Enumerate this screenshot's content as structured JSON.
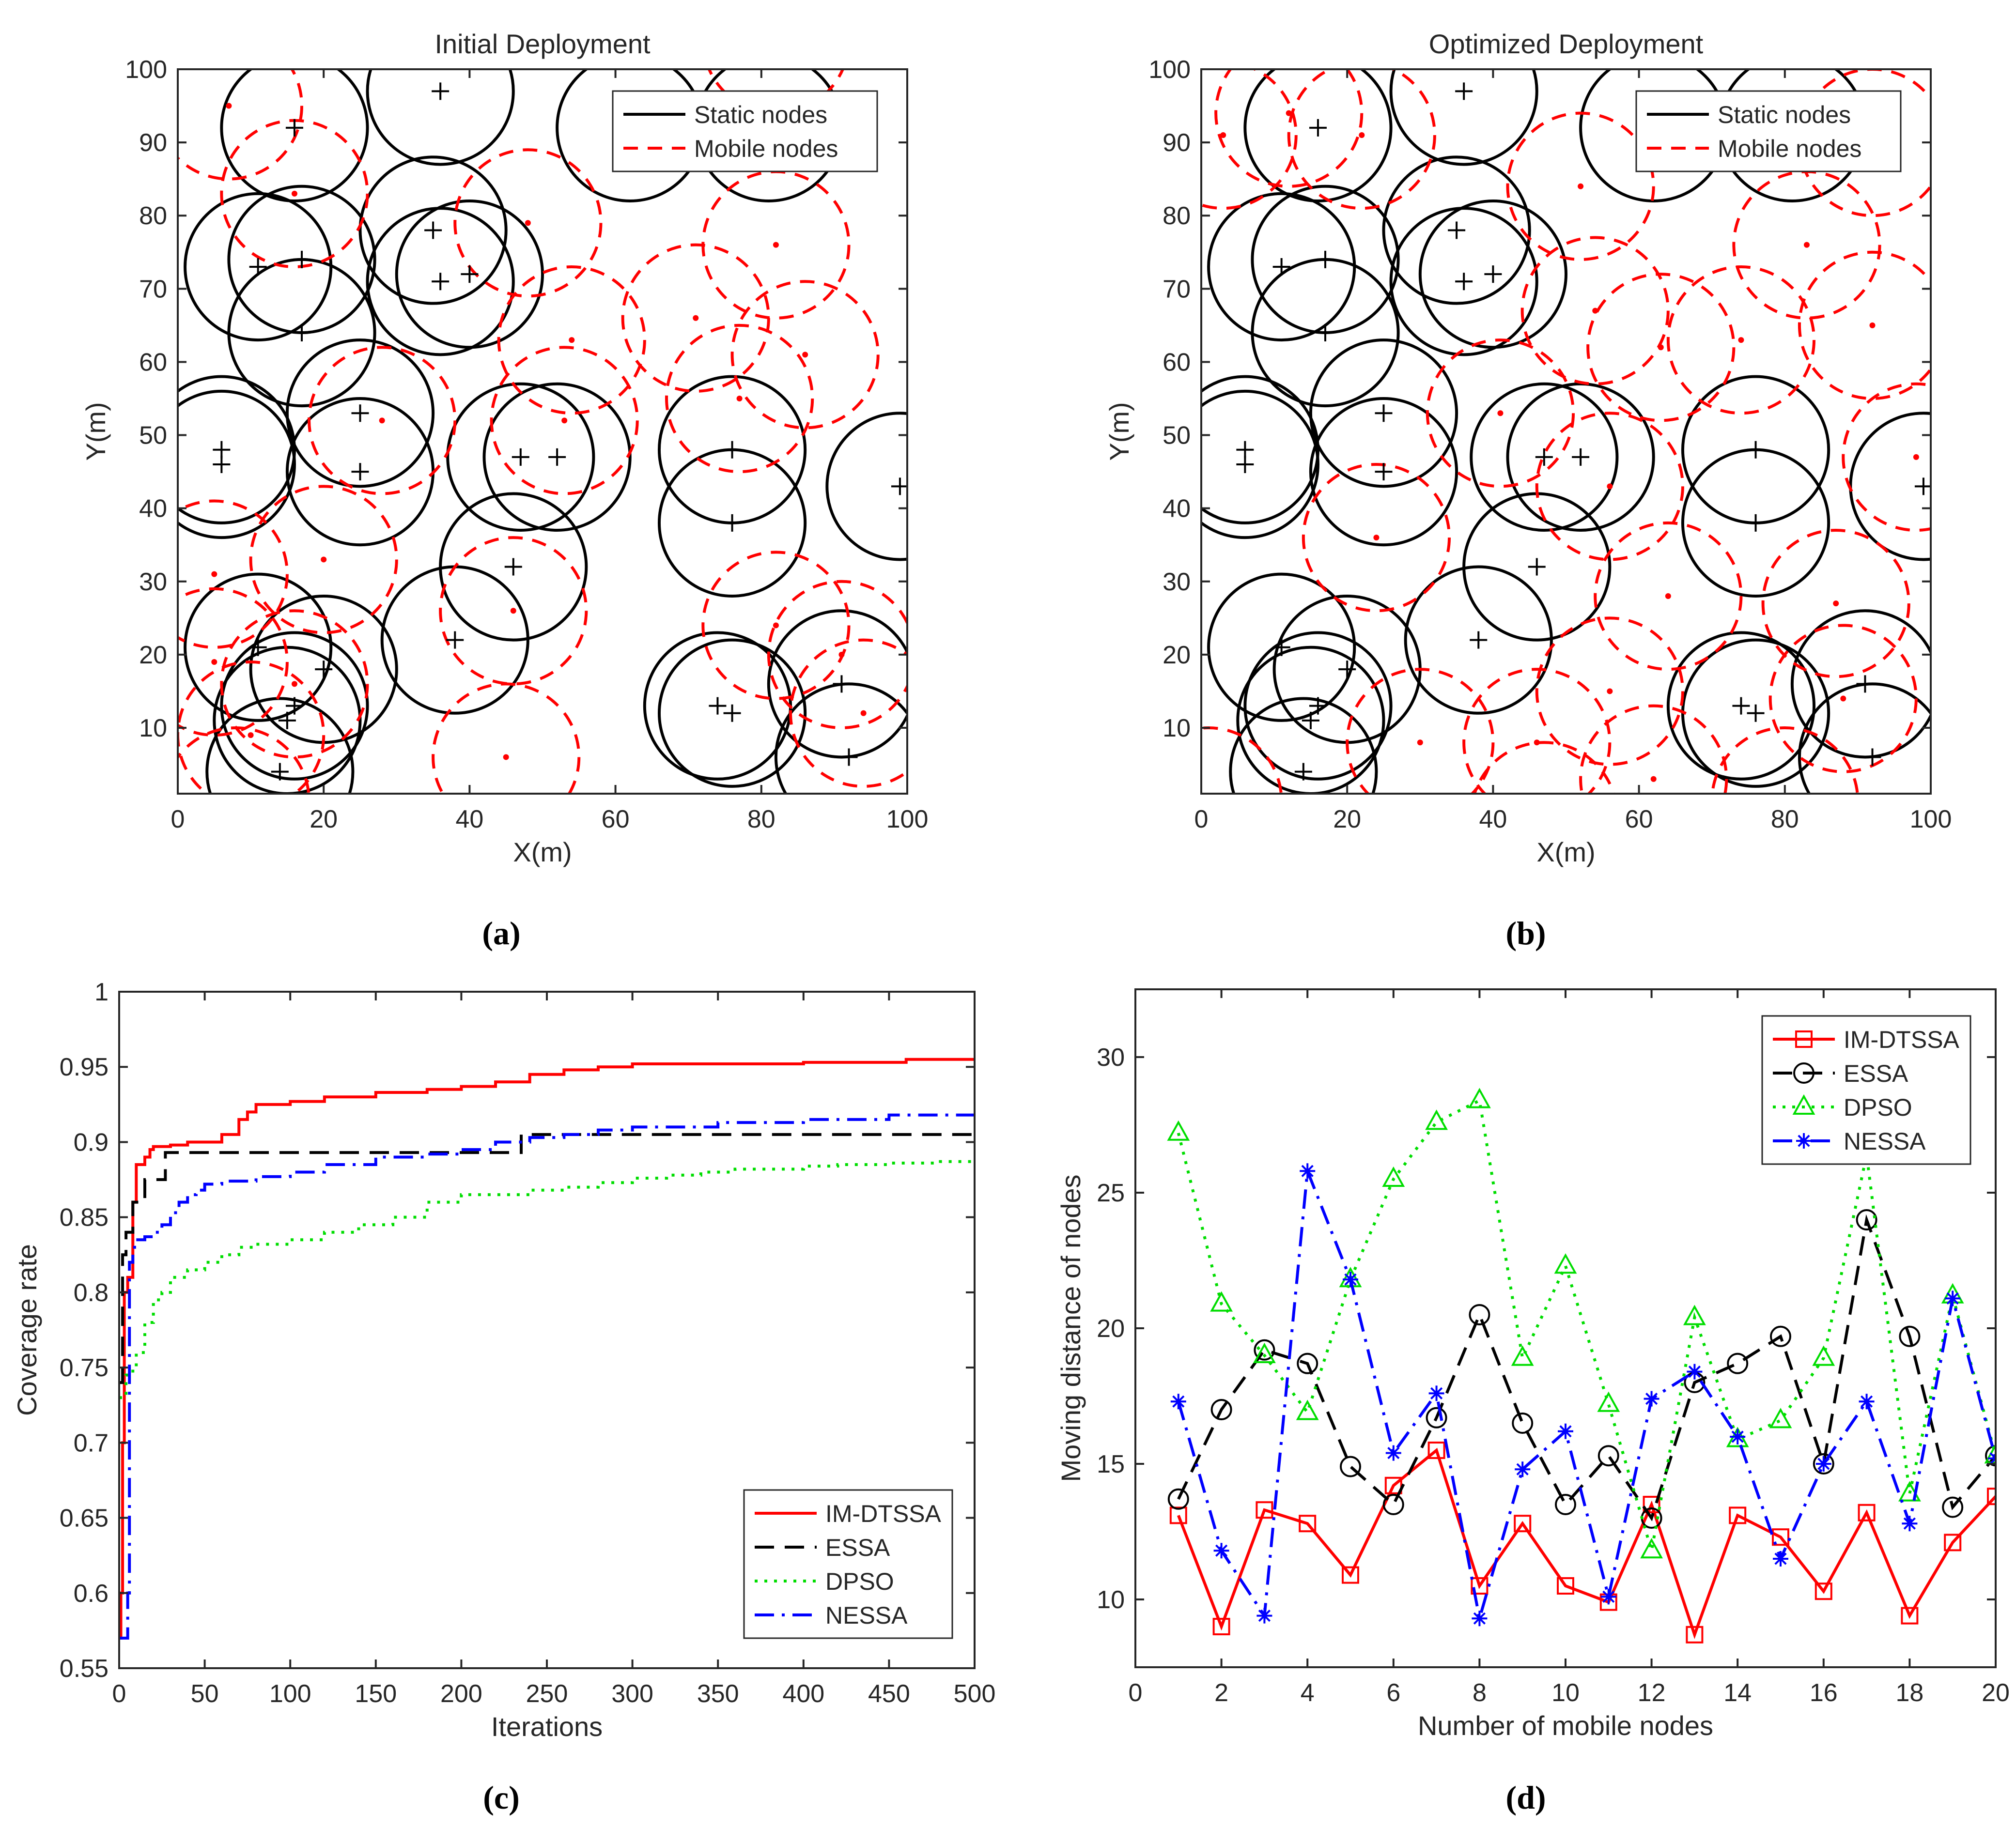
{
  "colors": {
    "static": "#000000",
    "mobile": "#ff0000",
    "essa": "#000000",
    "dpso": "#00dd00",
    "nessa": "#0000ff",
    "imdtssa": "#ff0000"
  },
  "charts": [
    {
      "id": "a",
      "type": "scatter",
      "title": "Initial Deployment",
      "xlabel": "X(m)",
      "ylabel": "Y(m)",
      "xlim": [
        0,
        100
      ],
      "ylim": [
        1,
        100
      ],
      "xticks": [
        0,
        20,
        40,
        60,
        80,
        100
      ],
      "yticks": [
        10,
        20,
        30,
        40,
        50,
        60,
        70,
        80,
        90,
        100
      ],
      "legend": [
        "Static nodes",
        "Mobile nodes"
      ],
      "legend_position": "top-right",
      "caption": "(a)",
      "sensing_radius": 10,
      "static_nodes": [
        [
          36,
          97
        ],
        [
          62,
          92
        ],
        [
          16,
          92
        ],
        [
          81,
          92
        ],
        [
          11,
          73
        ],
        [
          17,
          74
        ],
        [
          17,
          64
        ],
        [
          35,
          78
        ],
        [
          36,
          71
        ],
        [
          40,
          72
        ],
        [
          6,
          48
        ],
        [
          6,
          46
        ],
        [
          25,
          53
        ],
        [
          25,
          45
        ],
        [
          47,
          47
        ],
        [
          52,
          47
        ],
        [
          46,
          32
        ],
        [
          76,
          48
        ],
        [
          76,
          38
        ],
        [
          38,
          22
        ],
        [
          11,
          21
        ],
        [
          20,
          18
        ],
        [
          16,
          13
        ],
        [
          15,
          11
        ],
        [
          14,
          4
        ],
        [
          74,
          13
        ],
        [
          76,
          12
        ],
        [
          91,
          16
        ],
        [
          92,
          6
        ],
        [
          99,
          43
        ]
      ],
      "mobile_nodes": [
        [
          7,
          95
        ],
        [
          16,
          83
        ],
        [
          48,
          79
        ],
        [
          82,
          76
        ],
        [
          71,
          66
        ],
        [
          54,
          63
        ],
        [
          86,
          61
        ],
        [
          77,
          55
        ],
        [
          28,
          52
        ],
        [
          53,
          52
        ],
        [
          20,
          33
        ],
        [
          5,
          31
        ],
        [
          46,
          26
        ],
        [
          82,
          24
        ],
        [
          91,
          20
        ],
        [
          5,
          19
        ],
        [
          10,
          9
        ],
        [
          16,
          16
        ],
        [
          94,
          12
        ],
        [
          45,
          6
        ],
        [
          8,
          0
        ],
        [
          82,
          104
        ]
      ]
    },
    {
      "id": "b",
      "type": "scatter",
      "title": "Optimized Deployment",
      "xlabel": "X(m)",
      "ylabel": "Y(m)",
      "xlim": [
        0,
        100
      ],
      "ylim": [
        1,
        100
      ],
      "xticks": [
        0,
        20,
        40,
        60,
        80,
        100
      ],
      "yticks": [
        10,
        20,
        30,
        40,
        50,
        60,
        70,
        80,
        90,
        100
      ],
      "legend": [
        "Static nodes",
        "Mobile nodes"
      ],
      "legend_position": "top-right",
      "caption": "(b)",
      "sensing_radius": 10,
      "static_nodes": [
        [
          36,
          97
        ],
        [
          62,
          92
        ],
        [
          16,
          92
        ],
        [
          81,
          92
        ],
        [
          11,
          73
        ],
        [
          17,
          74
        ],
        [
          17,
          64
        ],
        [
          35,
          78
        ],
        [
          36,
          71
        ],
        [
          40,
          72
        ],
        [
          6,
          48
        ],
        [
          6,
          46
        ],
        [
          25,
          53
        ],
        [
          25,
          45
        ],
        [
          47,
          47
        ],
        [
          52,
          47
        ],
        [
          46,
          32
        ],
        [
          76,
          48
        ],
        [
          76,
          38
        ],
        [
          38,
          22
        ],
        [
          11,
          21
        ],
        [
          20,
          18
        ],
        [
          16,
          13
        ],
        [
          15,
          11
        ],
        [
          14,
          4
        ],
        [
          74,
          13
        ],
        [
          76,
          12
        ],
        [
          91,
          16
        ],
        [
          92,
          6
        ],
        [
          99,
          43
        ]
      ],
      "mobile_nodes": [
        [
          3,
          91
        ],
        [
          12,
          94
        ],
        [
          22,
          91
        ],
        [
          52,
          84
        ],
        [
          92,
          90
        ],
        [
          83,
          76
        ],
        [
          54,
          67
        ],
        [
          63,
          62
        ],
        [
          92,
          65
        ],
        [
          74,
          63
        ],
        [
          98,
          47
        ],
        [
          41,
          53
        ],
        [
          56,
          43
        ],
        [
          24,
          36
        ],
        [
          87,
          27
        ],
        [
          64,
          28
        ],
        [
          56,
          15
        ],
        [
          88,
          14
        ],
        [
          30,
          8
        ],
        [
          46,
          8
        ],
        [
          62,
          3
        ],
        [
          80,
          0
        ],
        [
          1,
          0
        ],
        [
          47,
          -2
        ]
      ]
    },
    {
      "id": "c",
      "type": "line",
      "title": "",
      "xlabel": "Iterations",
      "ylabel": "Coverage rate",
      "xlim": [
        0,
        500
      ],
      "ylim": [
        0.55,
        1
      ],
      "xticks": [
        0,
        50,
        100,
        150,
        200,
        250,
        300,
        350,
        400,
        450,
        500
      ],
      "yticks": [
        0.55,
        0.6,
        0.65,
        0.7,
        0.75,
        0.8,
        0.85,
        0.9,
        0.95,
        1
      ],
      "ytick_labels": [
        "0.55",
        "0.6",
        "0.65",
        "0.7",
        "0.75",
        "0.8",
        "0.85",
        "0.9",
        "0.95",
        "1"
      ],
      "legend_position": "bottom-right",
      "caption": "(c)",
      "series": [
        {
          "name": "IM-DTSSA",
          "style": "solid",
          "color": "#ff0000",
          "x": [
            0,
            1,
            2,
            3,
            5,
            8,
            10,
            12,
            15,
            18,
            20,
            30,
            40,
            60,
            70,
            75,
            80,
            100,
            120,
            150,
            180,
            200,
            220,
            240,
            260,
            280,
            300,
            350,
            400,
            450,
            460,
            500
          ],
          "y": [
            0.57,
            0.6,
            0.7,
            0.8,
            0.81,
            0.86,
            0.885,
            0.885,
            0.89,
            0.895,
            0.897,
            0.898,
            0.9,
            0.905,
            0.915,
            0.92,
            0.925,
            0.927,
            0.93,
            0.933,
            0.935,
            0.937,
            0.94,
            0.945,
            0.948,
            0.95,
            0.952,
            0.952,
            0.953,
            0.953,
            0.955,
            0.955
          ]
        },
        {
          "name": "ESSA",
          "style": "dash",
          "color": "#000000",
          "x": [
            0,
            2,
            4,
            8,
            10,
            15,
            20,
            25,
            27,
            30,
            50,
            100,
            150,
            200,
            230,
            235,
            240,
            300,
            400,
            500
          ],
          "y": [
            0.74,
            0.825,
            0.84,
            0.86,
            0.86,
            0.875,
            0.875,
            0.875,
            0.893,
            0.893,
            0.893,
            0.893,
            0.893,
            0.893,
            0.893,
            0.905,
            0.905,
            0.905,
            0.905,
            0.905
          ]
        },
        {
          "name": "DPSO",
          "style": "dot",
          "color": "#00dd00",
          "x": [
            0,
            2,
            4,
            8,
            10,
            15,
            20,
            25,
            30,
            40,
            50,
            60,
            70,
            80,
            100,
            120,
            140,
            160,
            180,
            200,
            240,
            260,
            280,
            300,
            320,
            340,
            360,
            380,
            400,
            420,
            450,
            480,
            500
          ],
          "y": [
            0.73,
            0.73,
            0.745,
            0.75,
            0.76,
            0.78,
            0.795,
            0.8,
            0.81,
            0.815,
            0.82,
            0.825,
            0.83,
            0.832,
            0.835,
            0.84,
            0.845,
            0.85,
            0.86,
            0.865,
            0.868,
            0.87,
            0.873,
            0.876,
            0.878,
            0.88,
            0.882,
            0.882,
            0.884,
            0.885,
            0.886,
            0.887,
            0.888
          ]
        },
        {
          "name": "NESSA",
          "style": "dashdot",
          "color": "#0000ff",
          "x": [
            0,
            4,
            5,
            6,
            8,
            10,
            15,
            20,
            25,
            30,
            35,
            40,
            45,
            50,
            60,
            80,
            100,
            120,
            150,
            180,
            200,
            220,
            240,
            260,
            280,
            300,
            350,
            400,
            450,
            500
          ],
          "y": [
            0.57,
            0.57,
            0.6,
            0.82,
            0.83,
            0.835,
            0.837,
            0.84,
            0.845,
            0.853,
            0.86,
            0.865,
            0.868,
            0.872,
            0.874,
            0.877,
            0.88,
            0.885,
            0.89,
            0.892,
            0.895,
            0.9,
            0.903,
            0.905,
            0.908,
            0.91,
            0.913,
            0.915,
            0.918,
            0.92
          ]
        }
      ]
    },
    {
      "id": "d",
      "type": "line",
      "title": "",
      "xlabel": "Number of mobile nodes",
      "ylabel": "Moving distance of nodes",
      "xlim": [
        0,
        20
      ],
      "ylim": [
        7.5,
        32.5
      ],
      "xticks": [
        0,
        2,
        4,
        6,
        8,
        10,
        12,
        14,
        16,
        18,
        20
      ],
      "yticks": [
        10,
        15,
        20,
        25,
        30
      ],
      "legend_position": "top-right",
      "caption": "(d)",
      "series": [
        {
          "name": "IM-DTSSA",
          "style": "solid",
          "marker": "square",
          "color": "#ff0000",
          "x": [
            1,
            2,
            3,
            4,
            5,
            6,
            7,
            8,
            9,
            10,
            11,
            12,
            13,
            14,
            15,
            16,
            17,
            18,
            19,
            20
          ],
          "y": [
            13.1,
            9.0,
            13.3,
            12.8,
            10.9,
            14.2,
            15.5,
            10.5,
            12.8,
            10.5,
            9.9,
            13.5,
            8.7,
            13.1,
            12.3,
            10.3,
            13.2,
            9.4,
            12.1,
            13.8
          ]
        },
        {
          "name": "ESSA",
          "style": "dash",
          "marker": "circle",
          "color": "#000000",
          "x": [
            1,
            2,
            3,
            4,
            5,
            6,
            7,
            8,
            9,
            10,
            11,
            12,
            13,
            14,
            15,
            16,
            17,
            18,
            19,
            20
          ],
          "y": [
            13.7,
            17.0,
            19.2,
            18.7,
            14.9,
            13.5,
            16.7,
            20.5,
            16.5,
            13.5,
            15.3,
            13.0,
            18.0,
            18.7,
            19.7,
            15.0,
            24.0,
            19.7,
            13.4,
            15.3
          ]
        },
        {
          "name": "DPSO",
          "style": "dot",
          "marker": "triangle",
          "color": "#00dd00",
          "x": [
            1,
            2,
            3,
            4,
            5,
            6,
            7,
            8,
            9,
            10,
            11,
            12,
            13,
            14,
            15,
            16,
            17,
            18,
            19,
            20
          ],
          "y": [
            27.2,
            20.9,
            19.0,
            16.9,
            21.8,
            25.5,
            27.6,
            28.4,
            18.9,
            22.3,
            17.2,
            11.8,
            20.4,
            15.9,
            16.6,
            18.9,
            26.4,
            13.9,
            21.2,
            15.3
          ]
        },
        {
          "name": "NESSA",
          "style": "dashdot",
          "marker": "asterisk",
          "color": "#0000ff",
          "x": [
            1,
            2,
            3,
            4,
            5,
            6,
            7,
            8,
            9,
            10,
            11,
            12,
            13,
            14,
            15,
            16,
            17,
            18,
            19,
            20
          ],
          "y": [
            17.3,
            11.8,
            9.4,
            25.8,
            21.8,
            15.4,
            17.6,
            9.3,
            14.8,
            16.2,
            10.1,
            17.4,
            18.4,
            16.0,
            11.5,
            15.0,
            17.3,
            12.8,
            21.1,
            15.2
          ]
        }
      ]
    }
  ]
}
